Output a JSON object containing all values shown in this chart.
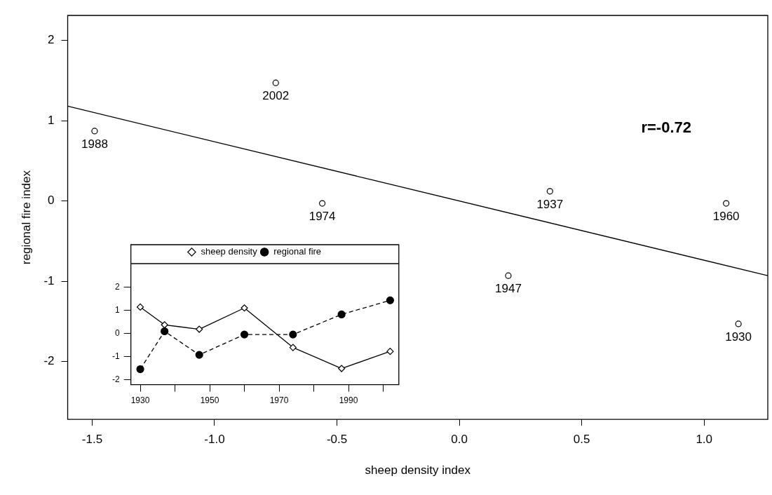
{
  "chart_data": [
    {
      "type": "scatter",
      "xlabel": "sheep density index",
      "ylabel": "regional fire index",
      "xlim": [
        -1.6,
        1.26
      ],
      "ylim": [
        -2.72,
        2.31
      ],
      "xticks": [
        -1.5,
        {
          "value": -1.0,
          "label": "-1.0"
        },
        -0.5,
        {
          "value": 0.0,
          "label": "0.0"
        },
        0.5,
        {
          "value": 1.0,
          "label": "1.0"
        }
      ],
      "yticks": [
        -2,
        -1,
        0,
        1,
        2
      ],
      "grid": false,
      "legend": false,
      "series": [
        {
          "type": "scatter",
          "marker": "circle",
          "color": "#000000",
          "x": [
            -1.49,
            -0.75,
            -0.56,
            0.37,
            0.2,
            1.09,
            1.14
          ],
          "values": [
            0.87,
            1.47,
            -0.03,
            0.12,
            -0.93,
            -0.03,
            -1.53
          ]
        },
        {
          "type": "line",
          "color": "#000000",
          "x": [
            -1.6,
            1.26
          ],
          "values": [
            1.18,
            -0.93
          ]
        }
      ],
      "annotations": [
        {
          "text": "1988",
          "x": -1.49,
          "y": 0.87
        },
        {
          "text": "2002",
          "x": -0.75,
          "y": 1.47
        },
        {
          "text": "1974",
          "x": -0.56,
          "y": -0.03
        },
        {
          "text": "1937",
          "x": 0.37,
          "y": 0.12
        },
        {
          "text": "1947",
          "x": 0.2,
          "y": -0.93
        },
        {
          "text": "1960",
          "x": 1.09,
          "y": -0.03
        },
        {
          "text": "1930",
          "x": 1.14,
          "y": -1.53
        },
        "r=-0.72"
      ]
    },
    {
      "type": "line",
      "xlim": [
        1927.3,
        2004.5
      ],
      "ylim": [
        -2.22,
        3.02
      ],
      "xticks": [
        1930,
        {
          "value": 1940,
          "label": null
        },
        1950,
        {
          "value": 1960,
          "label": null
        },
        1970,
        {
          "value": 1980,
          "label": null
        },
        1990,
        {
          "value": 2000,
          "label": null
        }
      ],
      "yticks": [
        -2,
        -1,
        0,
        1,
        2
      ],
      "grid": false,
      "legend": "top",
      "series": [
        {
          "name": "sheep density",
          "color": "#000000",
          "marker": "diamond",
          "line_style": "solid",
          "x": [
            1930,
            1937,
            1947,
            1960,
            1974,
            1988,
            2002
          ],
          "values": [
            1.14,
            0.37,
            0.18,
            1.1,
            -0.61,
            -1.52,
            -0.78
          ]
        },
        {
          "name": "regional fire",
          "color": "#000000",
          "marker": "circle",
          "line_style": "dashed",
          "x": [
            1930,
            1937,
            1947,
            1960,
            1974,
            1988,
            2002
          ],
          "values": [
            -1.55,
            0.09,
            -0.93,
            -0.05,
            -0.05,
            0.82,
            1.43
          ]
        }
      ]
    }
  ]
}
